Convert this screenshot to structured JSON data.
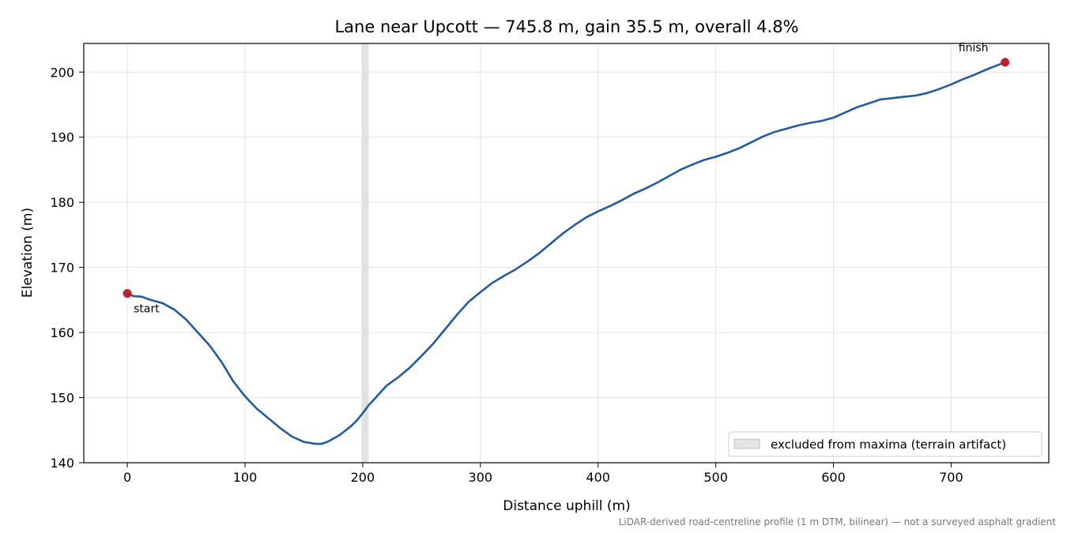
{
  "chart_data": {
    "type": "line",
    "title": "Lane near Upcott — 745.8 m, gain 35.5 m, overall 4.8%",
    "xlabel": "Distance uphill (m)",
    "ylabel": "Elevation (m)",
    "xlim": [
      -37,
      783
    ],
    "ylim": [
      140,
      204.4
    ],
    "x_ticks": [
      0,
      100,
      200,
      300,
      400,
      500,
      600,
      700
    ],
    "y_ticks": [
      140,
      150,
      160,
      170,
      180,
      190,
      200
    ],
    "x_tick_labels": [
      "0",
      "100",
      "200",
      "300",
      "400",
      "500",
      "600",
      "700"
    ],
    "y_tick_labels": [
      "140",
      "150",
      "160",
      "170",
      "180",
      "190",
      "200"
    ],
    "grid": true,
    "line_color": "#1f5aad",
    "marker_color": "#c0202a",
    "band_color": "#bdbdbd",
    "series": [
      {
        "x": [
          0,
          5,
          12,
          20,
          30,
          40,
          50,
          60,
          70,
          80,
          90,
          100,
          110,
          120,
          130,
          140,
          150,
          160,
          165,
          170,
          180,
          190,
          195,
          200,
          205,
          210,
          220,
          230,
          240,
          250,
          260,
          270,
          280,
          290,
          300,
          310,
          320,
          330,
          340,
          350,
          360,
          370,
          380,
          390,
          400,
          410,
          420,
          430,
          440,
          450,
          460,
          470,
          480,
          490,
          500,
          510,
          520,
          530,
          540,
          550,
          560,
          570,
          580,
          590,
          600,
          610,
          620,
          630,
          640,
          650,
          660,
          670,
          680,
          690,
          700,
          710,
          720,
          730,
          740,
          745.8
        ],
        "y": [
          166,
          165.6,
          165.5,
          165,
          164.5,
          163.5,
          162,
          160,
          158,
          155.5,
          152.5,
          150.2,
          148.3,
          146.8,
          145.3,
          144,
          143.2,
          142.9,
          142.9,
          143.2,
          144.2,
          145.6,
          146.5,
          147.6,
          148.8,
          149.8,
          151.8,
          153.1,
          154.6,
          156.4,
          158.3,
          160.5,
          162.7,
          164.7,
          166.2,
          167.6,
          168.7,
          169.7,
          170.9,
          172.2,
          173.7,
          175.2,
          176.5,
          177.7,
          178.6,
          179.4,
          180.3,
          181.3,
          182.1,
          183,
          184,
          185,
          185.8,
          186.5,
          187,
          187.6,
          188.3,
          189.2,
          190.1,
          190.8,
          191.3,
          191.8,
          192.2,
          192.5,
          193,
          193.8,
          194.6,
          195.2,
          195.8,
          196,
          196.2,
          196.4,
          196.8,
          197.4,
          198.1,
          198.9,
          199.6,
          200.4,
          201.1,
          201.5
        ]
      }
    ],
    "excluded_band": {
      "x_start": 199,
      "x_end": 205,
      "label": "excluded from maxima (terrain artifact)"
    },
    "markers": [
      {
        "x": 0,
        "y": 166,
        "label": "start"
      },
      {
        "x": 745.8,
        "y": 201.5,
        "label": "finish"
      }
    ],
    "legend_position": "lower-right",
    "footnote": "LiDAR-derived road-centreline profile (1 m DTM, bilinear) — not a surveyed asphalt gradient"
  }
}
